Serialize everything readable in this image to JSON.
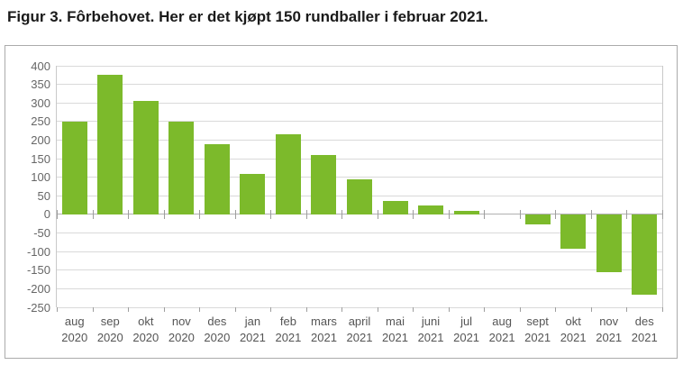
{
  "title": "Figur 3. Fôrbehovet. Her er det kjøpt 150 rundballer i februar 2021.",
  "chart_data": {
    "type": "bar",
    "title": "Figur 3. Fôrbehovet. Her er det kjøpt 150 rundballer i februar 2021.",
    "categories": [
      "aug 2020",
      "sep 2020",
      "okt 2020",
      "nov 2020",
      "des 2020",
      "jan 2021",
      "feb 2021",
      "mars 2021",
      "april 2021",
      "mai 2021",
      "juni 2021",
      "jul 2021",
      "aug 2021",
      "sept 2021",
      "okt 2021",
      "nov 2021",
      "des 2021"
    ],
    "x_tick_months": [
      "aug",
      "sep",
      "okt",
      "nov",
      "des",
      "jan",
      "feb",
      "mars",
      "april",
      "mai",
      "juni",
      "jul",
      "aug",
      "sept",
      "okt",
      "nov",
      "des"
    ],
    "x_tick_years": [
      "2020",
      "2020",
      "2020",
      "2020",
      "2020",
      "2021",
      "2021",
      "2021",
      "2021",
      "2021",
      "2021",
      "2021",
      "2021",
      "2021",
      "2021",
      "2021",
      "2021"
    ],
    "values": [
      250,
      375,
      305,
      250,
      190,
      110,
      215,
      160,
      95,
      35,
      25,
      10,
      0,
      -25,
      -90,
      -155,
      -215
    ],
    "y_ticks": [
      400,
      350,
      300,
      250,
      200,
      150,
      100,
      50,
      0,
      -50,
      -100,
      -150,
      -200,
      -250
    ],
    "ylim": [
      -250,
      400
    ],
    "ytick_step": 50,
    "xlabel": "",
    "ylabel": "",
    "grid": true,
    "legend": false,
    "colors": {
      "bar": "#7cba2b",
      "grid": "#d9d9d9",
      "zero_axis": "#b0b0b0",
      "plot_border": "#c9c9c9",
      "box_border": "#ababab",
      "tick": "#9e9e9e",
      "y_label_text": "#666666",
      "x_label_text": "#555555",
      "title_text": "#1a1a1a",
      "background": "#ffffff"
    }
  }
}
